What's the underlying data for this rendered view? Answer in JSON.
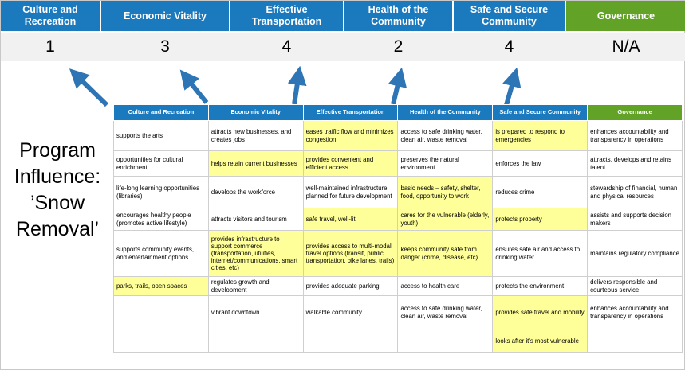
{
  "title": "Program Influence: ’Snow Removal’",
  "scoreboard": {
    "columns": [
      {
        "label": "Culture and Recreation",
        "score": "1"
      },
      {
        "label": "Economic Vitality",
        "score": "3"
      },
      {
        "label": "Effective Transportation",
        "score": "4"
      },
      {
        "label": "Health of the Community",
        "score": "2"
      },
      {
        "label": "Safe and Secure Community",
        "score": "4"
      },
      {
        "label": "Governance",
        "score": "N/A"
      }
    ]
  },
  "matrix": {
    "headers": [
      "Culture and Recreation",
      "Economic Vitality",
      "Effective Transportation",
      "Health of the Community",
      "Safe and Secure Community",
      "Governance"
    ],
    "rows": [
      [
        {
          "text": "supports the arts",
          "hl": false
        },
        {
          "text": "attracts new businesses, and creates jobs",
          "hl": false
        },
        {
          "text": "eases traffic flow and minimizes congestion",
          "hl": true
        },
        {
          "text": "access to safe drinking water, clean air, waste removal",
          "hl": false
        },
        {
          "text": "is prepared to respond to emergencies",
          "hl": true
        },
        {
          "text": "enhances accountability and transparency in operations",
          "hl": false
        }
      ],
      [
        {
          "text": "opportunities for cultural enrichment",
          "hl": false
        },
        {
          "text": "helps retain current businesses",
          "hl": true
        },
        {
          "text": "provides convenient and efficient access",
          "hl": true
        },
        {
          "text": "preserves the natural environment",
          "hl": false
        },
        {
          "text": "enforces the law",
          "hl": false
        },
        {
          "text": "attracts, develops and retains talent",
          "hl": false
        }
      ],
      [
        {
          "text": "life-long learning opportunities (libraries)",
          "hl": false
        },
        {
          "text": "develops the workforce",
          "hl": false
        },
        {
          "text": "well-maintained infrastructure, planned for future development",
          "hl": false
        },
        {
          "text": "basic needs – safety, shelter, food, opportunity to work",
          "hl": true
        },
        {
          "text": "reduces crime",
          "hl": false
        },
        {
          "text": "stewardship of financial, human and physical resources",
          "hl": false
        }
      ],
      [
        {
          "text": "encourages healthy people (promotes active lifestyle)",
          "hl": false
        },
        {
          "text": "attracts visitors and tourism",
          "hl": false
        },
        {
          "text": "safe travel, well-lit",
          "hl": true
        },
        {
          "text": "cares for the vulnerable (elderly, youth)",
          "hl": true
        },
        {
          "text": "protects property",
          "hl": true
        },
        {
          "text": "assists and supports decision makers",
          "hl": false
        }
      ],
      [
        {
          "text": "supports community events, and entertainment options",
          "hl": false
        },
        {
          "text": "provides infrastructure to support commerce (transportation, utilities, internet/communications, smart cities, etc)",
          "hl": true
        },
        {
          "text": "provides access to multi-modal travel options (transit, public transportation, bike lanes, trails)",
          "hl": true
        },
        {
          "text": "keeps community safe from danger (crime, disease, etc)",
          "hl": true
        },
        {
          "text": "ensures safe air and access to drinking water",
          "hl": false
        },
        {
          "text": "maintains regulatory compliance",
          "hl": false
        }
      ],
      [
        {
          "text": "parks, trails, open spaces",
          "hl": true
        },
        {
          "text": "regulates growth and development",
          "hl": false
        },
        {
          "text": "provides adequate parking",
          "hl": false
        },
        {
          "text": "access to health care",
          "hl": false
        },
        {
          "text": "protects the environment",
          "hl": false
        },
        {
          "text": "delivers responsible and courteous service",
          "hl": false
        }
      ],
      [
        {
          "text": "",
          "hl": false
        },
        {
          "text": "vibrant downtown",
          "hl": false
        },
        {
          "text": "walkable community",
          "hl": false
        },
        {
          "text": "access to safe drinking water, clean air, waste removal",
          "hl": false
        },
        {
          "text": "provides safe travel and mobility",
          "hl": true
        },
        {
          "text": "enhances accountability and transparency in operations",
          "hl": false
        }
      ],
      [
        {
          "text": "",
          "hl": false
        },
        {
          "text": "",
          "hl": false
        },
        {
          "text": "",
          "hl": false
        },
        {
          "text": "",
          "hl": false
        },
        {
          "text": "looks after it's most vulnerable",
          "hl": true
        },
        {
          "text": "",
          "hl": false
        }
      ]
    ]
  },
  "colors": {
    "header_blue": "#1b79be",
    "header_green": "#62a226",
    "highlight_yellow": "#ffff99",
    "score_bg": "#f1f1f1",
    "arrow_blue": "#2e75b6"
  }
}
